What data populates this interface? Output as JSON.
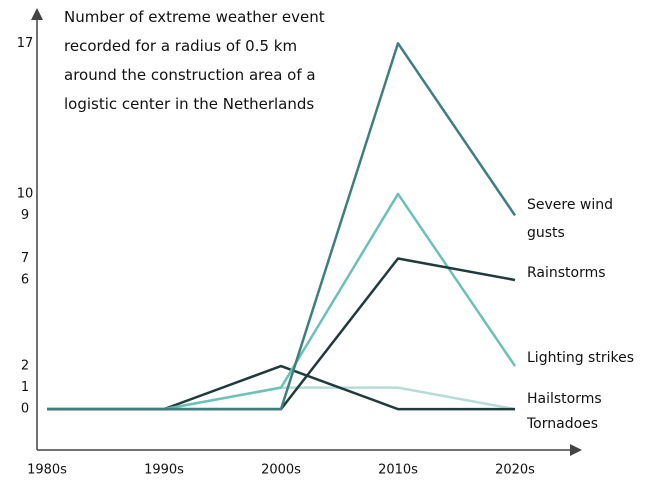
{
  "chart_data": {
    "type": "line",
    "title": [
      "Number of extreme weather event",
      "recorded for a radius of 0.5 km",
      "around the construction area of a",
      "logistic center in the Netherlands"
    ],
    "categories": [
      "1980s",
      "1990s",
      "2000s",
      "2010s",
      "2020s"
    ],
    "series": [
      {
        "name": "Hailstorms",
        "color": "#b7dcd8",
        "values": [
          0,
          0,
          1,
          1,
          0
        ]
      },
      {
        "name": "Tornadoes",
        "color": "#1f3b3b",
        "values": [
          0,
          0,
          2,
          0,
          0
        ]
      },
      {
        "name": "Lighting strikes",
        "color": "#6cc1b7",
        "values": [
          0,
          0,
          1,
          10,
          2
        ]
      },
      {
        "name": "Rainstorms",
        "color": "#1f3b3b",
        "values": [
          0,
          0,
          0,
          7,
          6
        ]
      },
      {
        "name": "Severe wind gusts",
        "color": "#3e7f7d",
        "values": [
          0,
          0,
          0,
          17,
          9
        ]
      }
    ],
    "ylim": [
      -1.9,
      18.5
    ],
    "yticks": [
      0,
      1,
      2,
      6,
      7,
      9,
      10,
      17
    ],
    "grid": false
  }
}
